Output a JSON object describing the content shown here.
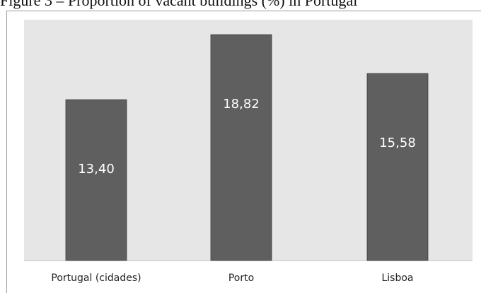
{
  "figure_title": "Figure 3 – Proportion of vacant buildings (%) in Portugal",
  "chart_data": {
    "type": "bar",
    "title": "",
    "xlabel": "",
    "ylabel": "",
    "categories": [
      "Portugal (cidades)",
      "Porto",
      "Lisboa"
    ],
    "values": [
      13.4,
      18.82,
      15.58
    ],
    "value_labels": [
      "13,40",
      "18,82",
      "15,58"
    ],
    "ylim": [
      0,
      20
    ],
    "grid": false,
    "legend": "none",
    "colors": {
      "bar": "#5f5f5f",
      "plot_background": "#e6e6e6",
      "value_text": "#ffffff"
    }
  }
}
